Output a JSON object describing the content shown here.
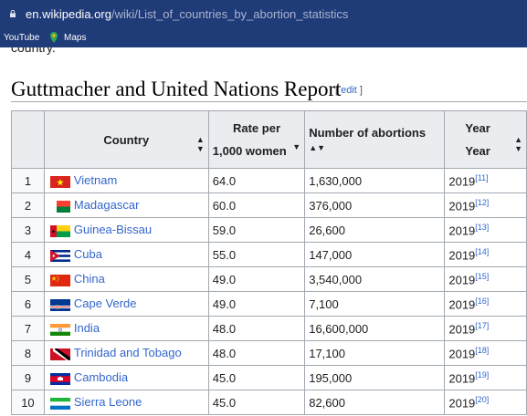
{
  "browser": {
    "url_domain": "en.wikipedia.org",
    "url_path": "/wiki/List_of_countries_by_abortion_statistics",
    "bookmarks": [
      "YouTube",
      "Maps"
    ]
  },
  "page": {
    "prev_text": "country.",
    "heading": "Guttmacher and United Nations Report",
    "edit_link": "edit"
  },
  "table": {
    "headers": {
      "country": "Country",
      "rate_line1": "Rate per",
      "rate_line2": "1,000 women",
      "abortions": "Number of abortions",
      "year_line1": "Year",
      "year_line2": "Year"
    },
    "rows": [
      {
        "n": "1",
        "country": "Vietnam",
        "rate": "64.0",
        "count": "1,630,000",
        "year": "2019",
        "ref": "[11]"
      },
      {
        "n": "2",
        "country": "Madagascar",
        "rate": "60.0",
        "count": "376,000",
        "year": "2019",
        "ref": "[12]"
      },
      {
        "n": "3",
        "country": "Guinea-Bissau",
        "rate": "59.0",
        "count": "26,600",
        "year": "2019",
        "ref": "[13]"
      },
      {
        "n": "4",
        "country": "Cuba",
        "rate": "55.0",
        "count": "147,000",
        "year": "2019",
        "ref": "[14]"
      },
      {
        "n": "5",
        "country": "China",
        "rate": "49.0",
        "count": "3,540,000",
        "year": "2019",
        "ref": "[15]"
      },
      {
        "n": "6",
        "country": "Cape Verde",
        "rate": "49.0",
        "count": "7,100",
        "year": "2019",
        "ref": "[16]"
      },
      {
        "n": "7",
        "country": "India",
        "rate": "48.0",
        "count": "16,600,000",
        "year": "2019",
        "ref": "[17]"
      },
      {
        "n": "8",
        "country": "Trinidad and Tobago",
        "rate": "48.0",
        "count": "17,100",
        "year": "2019",
        "ref": "[18]"
      },
      {
        "n": "9",
        "country": "Cambodia",
        "rate": "45.0",
        "count": "195,000",
        "year": "2019",
        "ref": "[19]"
      },
      {
        "n": "10",
        "country": "Sierra Leone",
        "rate": "45.0",
        "count": "82,600",
        "year": "2019",
        "ref": "[20]"
      }
    ]
  }
}
